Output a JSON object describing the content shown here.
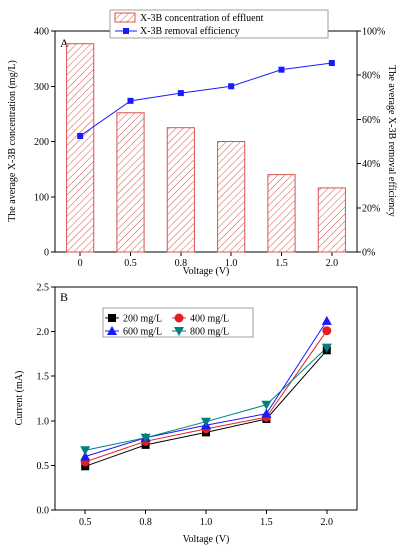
{
  "chart_data": [
    {
      "type": "bar",
      "panel_label": "A",
      "categories": [
        "0",
        "0.5",
        "0.8",
        "1.0",
        "1.5",
        "2.0"
      ],
      "series": [
        {
          "name": "X-3B concentration of effluent",
          "values": [
            377,
            252,
            225,
            200,
            140,
            116
          ],
          "axis": "left",
          "style": "hatched-bar",
          "color": "#d9534f"
        },
        {
          "name": "X-3B removal efficiency",
          "values": [
            52.5,
            68.4,
            71.9,
            75.0,
            82.5,
            85.5
          ],
          "axis": "right",
          "style": "line-square",
          "color": "#1a1aff"
        }
      ],
      "xlabel": "Voltage (V)",
      "ylabel": "The average X-3B concentration (mg/L)",
      "y2label": "The average X-3B removal efficiency",
      "ylim": [
        0,
        400
      ],
      "y_ticks": [
        "0",
        "100",
        "200",
        "300",
        "400"
      ],
      "y2lim": [
        0,
        100
      ],
      "y2_ticks": [
        "0%",
        "20%",
        "40%",
        "60%",
        "80%",
        "100%"
      ],
      "legend": "top-center"
    },
    {
      "type": "line",
      "panel_label": "B",
      "x": [
        0.5,
        0.8,
        1.0,
        1.5,
        2.0
      ],
      "x_ticks": [
        "0.5",
        "0.8",
        "1.0",
        "1.5",
        "2.0"
      ],
      "series": [
        {
          "name": "200 mg/L",
          "values": [
            0.49,
            0.73,
            0.87,
            1.02,
            1.79
          ],
          "marker": "square",
          "color": "#000000"
        },
        {
          "name": "400 mg/L",
          "values": [
            0.54,
            0.77,
            0.91,
            1.04,
            2.01
          ],
          "marker": "circle",
          "color": "#e02020"
        },
        {
          "name": "600 mg/L",
          "values": [
            0.6,
            0.81,
            0.95,
            1.08,
            2.12
          ],
          "marker": "triangle-up",
          "color": "#1a1aff"
        },
        {
          "name": "800 mg/L",
          "values": [
            0.67,
            0.81,
            0.99,
            1.18,
            1.82
          ],
          "marker": "triangle-down",
          "color": "#008080"
        }
      ],
      "xlabel": "Voltage (V)",
      "ylabel": "Current (mA)",
      "ylim": [
        0,
        2.5
      ],
      "y_ticks": [
        "0.0",
        "0.5",
        "1.0",
        "1.5",
        "2.0",
        "2.5"
      ],
      "legend": "top-left"
    }
  ]
}
